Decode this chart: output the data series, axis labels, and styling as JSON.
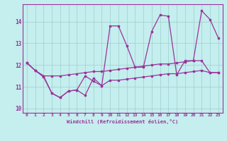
{
  "xlabel": "Windchill (Refroidissement éolien,°C)",
  "xlim": [
    -0.5,
    23.5
  ],
  "ylim": [
    9.8,
    14.8
  ],
  "xticks": [
    0,
    1,
    2,
    3,
    4,
    5,
    6,
    7,
    8,
    9,
    10,
    11,
    12,
    13,
    14,
    15,
    16,
    17,
    18,
    19,
    20,
    21,
    22,
    23
  ],
  "yticks": [
    10,
    11,
    12,
    13,
    14
  ],
  "background_color": "#c5eeee",
  "line_color": "#993399",
  "series": {
    "line1": [
      [
        0,
        12.1
      ],
      [
        1,
        11.75
      ],
      [
        2,
        11.5
      ],
      [
        3,
        10.7
      ],
      [
        4,
        10.5
      ],
      [
        5,
        10.8
      ],
      [
        6,
        10.85
      ],
      [
        7,
        11.5
      ],
      [
        8,
        11.25
      ],
      [
        9,
        11.05
      ],
      [
        10,
        13.8
      ],
      [
        11,
        13.8
      ],
      [
        12,
        12.9
      ],
      [
        13,
        11.9
      ],
      [
        14,
        11.9
      ],
      [
        15,
        13.55
      ],
      [
        16,
        14.3
      ],
      [
        17,
        14.25
      ],
      [
        18,
        11.55
      ],
      [
        19,
        12.2
      ],
      [
        20,
        12.2
      ],
      [
        21,
        14.5
      ],
      [
        22,
        14.1
      ],
      [
        23,
        13.25
      ]
    ],
    "line2": [
      [
        0,
        12.1
      ],
      [
        1,
        11.75
      ],
      [
        2,
        11.5
      ],
      [
        3,
        11.5
      ],
      [
        4,
        11.5
      ],
      [
        5,
        11.55
      ],
      [
        6,
        11.6
      ],
      [
        7,
        11.65
      ],
      [
        8,
        11.7
      ],
      [
        9,
        11.7
      ],
      [
        10,
        11.75
      ],
      [
        11,
        11.8
      ],
      [
        12,
        11.85
      ],
      [
        13,
        11.9
      ],
      [
        14,
        11.95
      ],
      [
        15,
        12.0
      ],
      [
        16,
        12.05
      ],
      [
        17,
        12.05
      ],
      [
        18,
        12.1
      ],
      [
        19,
        12.15
      ],
      [
        20,
        12.2
      ],
      [
        21,
        12.2
      ],
      [
        22,
        11.65
      ],
      [
        23,
        11.65
      ]
    ],
    "line3": [
      [
        0,
        12.1
      ],
      [
        1,
        11.75
      ],
      [
        2,
        11.45
      ],
      [
        3,
        10.7
      ],
      [
        4,
        10.5
      ],
      [
        5,
        10.8
      ],
      [
        6,
        10.85
      ],
      [
        7,
        10.6
      ],
      [
        8,
        11.4
      ],
      [
        9,
        11.05
      ],
      [
        10,
        11.3
      ],
      [
        11,
        11.3
      ],
      [
        12,
        11.35
      ],
      [
        13,
        11.4
      ],
      [
        14,
        11.45
      ],
      [
        15,
        11.5
      ],
      [
        16,
        11.55
      ],
      [
        17,
        11.6
      ],
      [
        18,
        11.6
      ],
      [
        19,
        11.65
      ],
      [
        20,
        11.7
      ],
      [
        21,
        11.75
      ],
      [
        22,
        11.65
      ],
      [
        23,
        11.65
      ]
    ]
  }
}
